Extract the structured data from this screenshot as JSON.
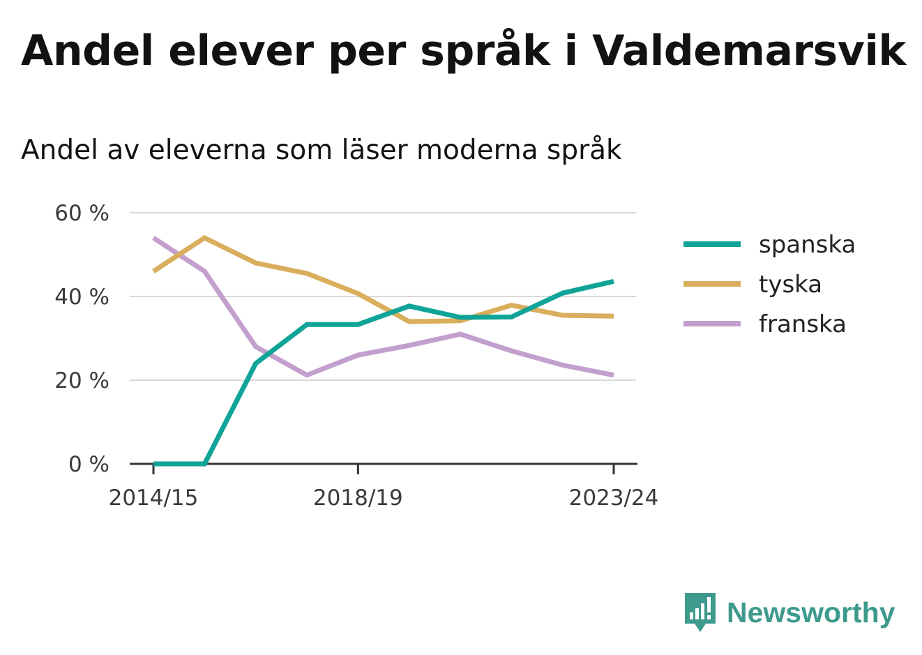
{
  "title": "Andel elever per språk i Valdemarsvik",
  "subtitle": "Andel av eleverna som läser moderna språk",
  "brand": {
    "name": "Newsworthy",
    "logo_icon": "bar-chart-speech-bubble-icon",
    "color": "#3d9a8d"
  },
  "chart_data": {
    "type": "line",
    "x": [
      "2014/15",
      "2015/16",
      "2016/17",
      "2017/18",
      "2018/19",
      "2019/20",
      "2020/21",
      "2021/22",
      "2022/23",
      "2023/24"
    ],
    "x_tick_labels": [
      "2014/15",
      "2018/19",
      "2023/24"
    ],
    "ylim": [
      0,
      60
    ],
    "y_ticks": [
      0,
      20,
      40,
      60
    ],
    "y_tick_labels": [
      "0 %",
      "20 %",
      "40 %",
      "60 %"
    ],
    "grid": true,
    "legend_position": "right",
    "series": [
      {
        "name": "spanska",
        "color": "#0fa497",
        "values": [
          0,
          0,
          24,
          33.3,
          33.3,
          37.7,
          35,
          35.1,
          40.8,
          43.6
        ]
      },
      {
        "name": "tyska",
        "color": "#d9ae5c",
        "values": [
          46,
          54,
          48,
          45.5,
          40.7,
          34,
          34.2,
          37.9,
          35.5,
          35.3
        ]
      },
      {
        "name": "franska",
        "color": "#c39fce",
        "values": [
          54,
          46,
          28,
          21.2,
          26,
          28.3,
          31,
          27,
          23.6,
          21.2
        ]
      }
    ]
  }
}
